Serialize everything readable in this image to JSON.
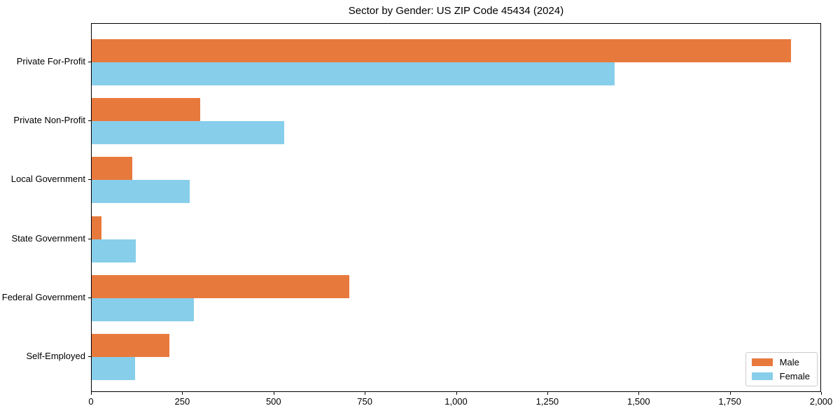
{
  "chart_data": {
    "type": "bar",
    "orientation": "horizontal",
    "title": "Sector by Gender: US ZIP Code 45434 (2024)",
    "xlabel": "",
    "ylabel": "",
    "categories": [
      "Private For-Profit",
      "Private Non-Profit",
      "Local Government",
      "State Government",
      "Federal Government",
      "Self-Employed"
    ],
    "series": [
      {
        "name": "Male",
        "color": "#e8793d",
        "values": [
          1915,
          297,
          112,
          27,
          705,
          213
        ]
      },
      {
        "name": "Female",
        "color": "#87ceeb",
        "values": [
          1433,
          528,
          269,
          121,
          280,
          119
        ]
      }
    ],
    "xlim": [
      0,
      2000
    ],
    "xticks": {
      "values": [
        0,
        250,
        500,
        750,
        1000,
        1250,
        1500,
        1750,
        2000
      ],
      "labels": [
        "0",
        "250",
        "500",
        "750",
        "1,000",
        "1,250",
        "1,500",
        "1,750",
        "2,000"
      ]
    },
    "grid": false,
    "legend": {
      "position": "lower right",
      "entries": [
        "Male",
        "Female"
      ]
    }
  }
}
